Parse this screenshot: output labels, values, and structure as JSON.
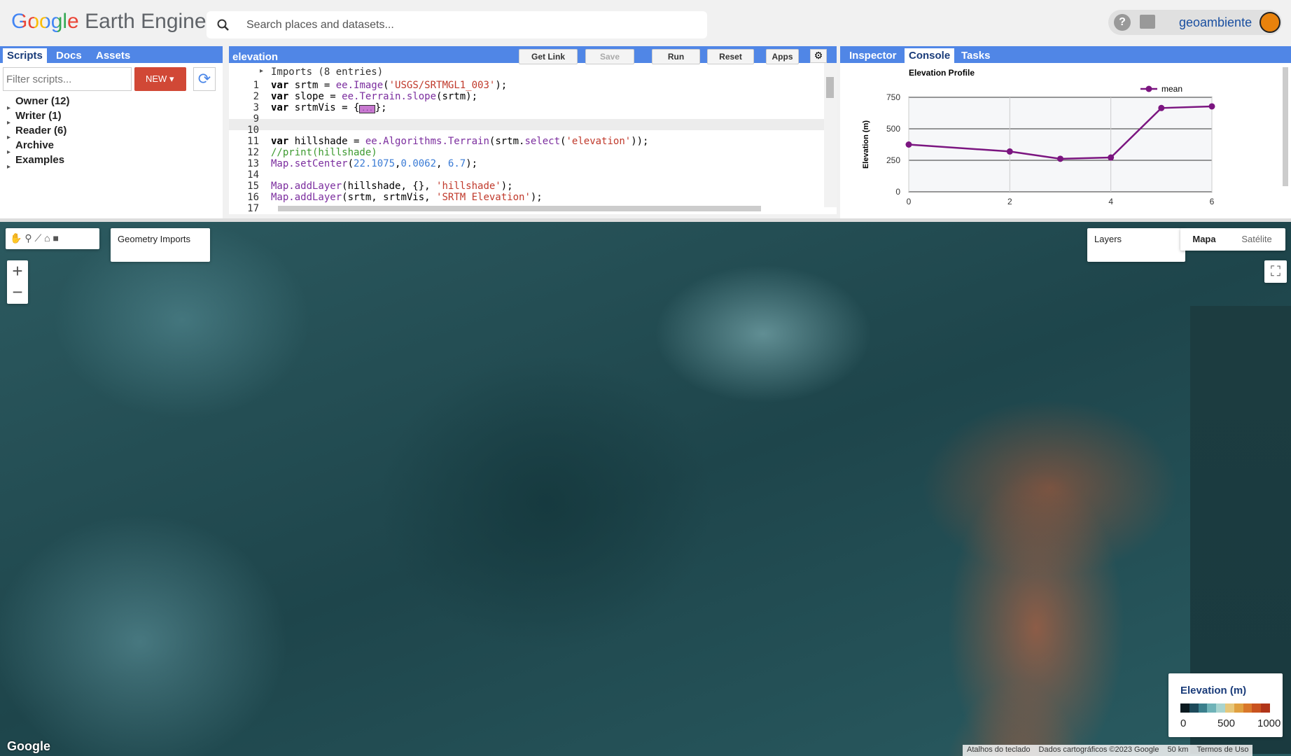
{
  "header": {
    "logo": "Google",
    "product": "Earth Engine",
    "search_placeholder": "Search places and datasets...",
    "user": "geoambiente"
  },
  "scripts_panel": {
    "tabs": [
      "Scripts",
      "Docs",
      "Assets"
    ],
    "filter_placeholder": "Filter scripts...",
    "new_button": "NEW",
    "tree": [
      "Owner (12)",
      "Writer (1)",
      "Reader (6)",
      "Archive",
      "Examples"
    ]
  },
  "editor": {
    "title": "elevation",
    "buttons": [
      "Get Link",
      "Save",
      "Run",
      "Reset",
      "Apps"
    ],
    "imports": "Imports (8 entries)",
    "lines": [
      {
        "number": "1",
        "segments": [
          {
            "text": "var",
            "color": "#000000"
          },
          {
            "text": " srtm = ",
            "color": "#000000"
          },
          {
            "text": "ee.Image",
            "color": "#7b2d9e"
          },
          {
            "text": "(",
            "color": "#000000"
          },
          {
            "text": "'USGS/SRTMGL1_003'",
            "color": "#c0392b"
          },
          {
            "text": ");",
            "color": "#000000"
          }
        ]
      },
      {
        "number": "2",
        "segments": [
          {
            "text": "var",
            "color": "#000000"
          },
          {
            "text": " slope = ",
            "color": "#000000"
          },
          {
            "text": "ee.Terrain.slope",
            "color": "#7b2d9e"
          },
          {
            "text": "(srtm);",
            "color": "#000000"
          }
        ]
      },
      {
        "number": "3",
        "segments": [
          {
            "text": "var",
            "color": "#000000"
          },
          {
            "text": " srtmVis = {",
            "color": "#000000"
          },
          {
            "text": "...",
            "color": "#7b2d9e"
          },
          {
            "text": "};",
            "color": "#000000"
          }
        ]
      },
      {
        "number": "9",
        "segments": []
      },
      {
        "number": "10",
        "segments": []
      },
      {
        "number": "11",
        "segments": [
          {
            "text": "var",
            "color": "#000000"
          },
          {
            "text": " hillshade = ",
            "color": "#000000"
          },
          {
            "text": "ee.Algorithms.Terrain",
            "color": "#7b2d9e"
          },
          {
            "text": "(srtm.",
            "color": "#000000"
          },
          {
            "text": "select",
            "color": "#7b2d9e"
          },
          {
            "text": "(",
            "color": "#000000"
          },
          {
            "text": "'elevation'",
            "color": "#c0392b"
          },
          {
            "text": "));",
            "color": "#000000"
          }
        ]
      },
      {
        "number": "12",
        "segments": [
          {
            "text": "//print(hillshade)",
            "color": "#3c9a2f"
          }
        ]
      },
      {
        "number": "13",
        "segments": [
          {
            "text": "Map.setCenter",
            "color": "#7b2d9e"
          },
          {
            "text": "(",
            "color": "#000000"
          },
          {
            "text": "22.1075",
            "color": "#3a7bd5"
          },
          {
            "text": ",",
            "color": "#000000"
          },
          {
            "text": "0.0062",
            "color": "#3a7bd5"
          },
          {
            "text": ", ",
            "color": "#000000"
          },
          {
            "text": "6.7",
            "color": "#3a7bd5"
          },
          {
            "text": ");",
            "color": "#000000"
          }
        ]
      },
      {
        "number": "14",
        "segments": []
      },
      {
        "number": "15",
        "segments": [
          {
            "text": "Map.addLayer",
            "color": "#7b2d9e"
          },
          {
            "text": "(hillshade, {}, ",
            "color": "#000000"
          },
          {
            "text": "'hillshade'",
            "color": "#c0392b"
          },
          {
            "text": ");",
            "color": "#000000"
          }
        ]
      },
      {
        "number": "16",
        "segments": [
          {
            "text": "Map.addLayer",
            "color": "#7b2d9e"
          },
          {
            "text": "(srtm, srtmVis, ",
            "color": "#000000"
          },
          {
            "text": "'SRTM Elevation'",
            "color": "#c0392b"
          },
          {
            "text": ");",
            "color": "#000000"
          }
        ]
      },
      {
        "number": "17",
        "segments": []
      }
    ]
  },
  "right_panel": {
    "tabs": [
      "Inspector",
      "Console",
      "Tasks"
    ]
  },
  "chart_data": {
    "type": "line",
    "title": "Elevation Profile",
    "y_label": "Elevation (m)",
    "x": [
      0,
      2,
      3,
      4,
      5,
      6
    ],
    "series": [
      {
        "name": "mean",
        "color": "#7b1580",
        "values": [
          375,
          320,
          262,
          272,
          665,
          678
        ]
      }
    ],
    "xlim": [
      0,
      6
    ],
    "xticks": [
      0,
      2,
      4,
      6
    ],
    "ylim": [
      0,
      750
    ],
    "yticks": [
      0,
      250,
      500,
      750
    ],
    "grid": true,
    "legend": "top-right"
  },
  "map": {
    "geometry_imports": "Geometry Imports",
    "layers": "Layers",
    "map_types": [
      "Mapa",
      "Satélite"
    ],
    "legend": {
      "title": "Elevation (m)",
      "labels": [
        0,
        500,
        1000
      ],
      "palette": [
        "#0b1a20",
        "#1d4a5a",
        "#3a7f8c",
        "#6fb3b8",
        "#a8d4cf",
        "#e6c77a",
        "#e0a040",
        "#d9772a",
        "#c9521f",
        "#b13519"
      ]
    },
    "footer": [
      "Atalhos do teclado",
      "Dados cartográficos ©2023 Google",
      "50 km",
      "Termos de Uso"
    ],
    "google": "Google"
  }
}
